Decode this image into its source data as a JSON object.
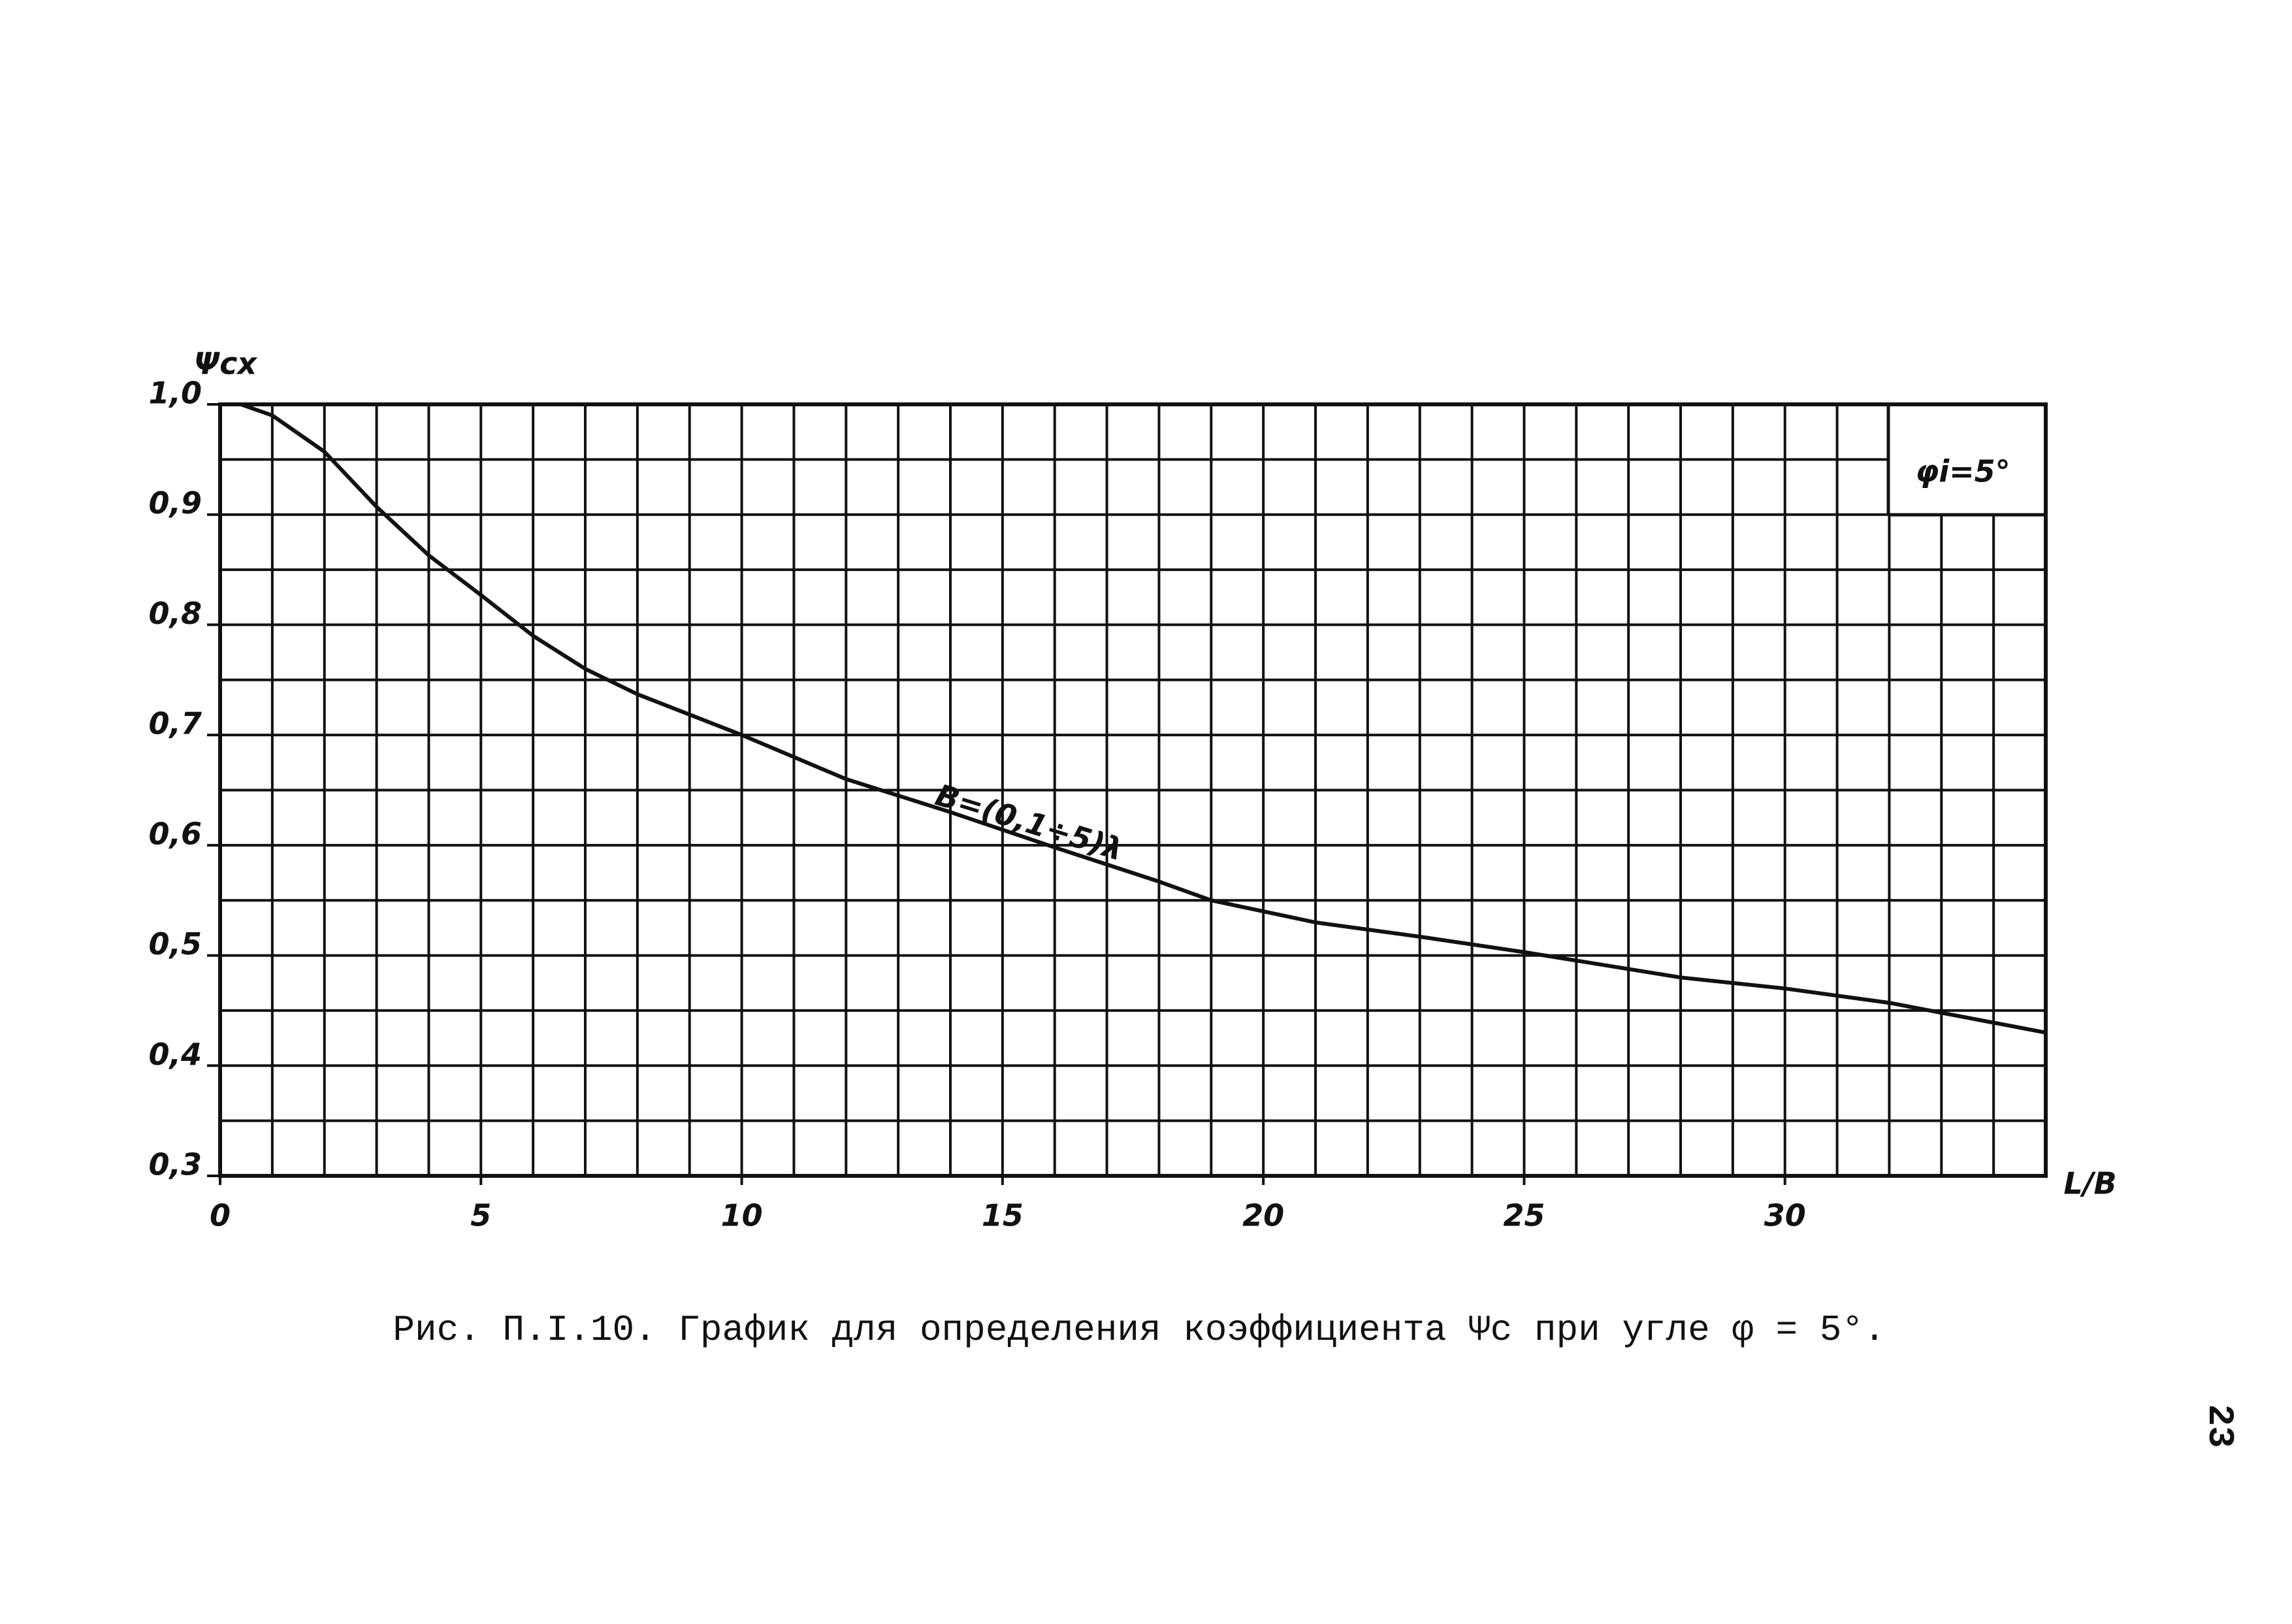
{
  "chart_data": {
    "type": "line",
    "caption": "Рис. П.I.10. График для определения коэффициента Ψc при угле φ = 5°.",
    "page_number": "23",
    "y_label": "Ψcx",
    "x_label": "L/B",
    "annotations": [
      "B=(0,1÷5)λ",
      "φi=5°"
    ],
    "x": [
      0.4,
      1,
      2,
      3,
      4,
      5,
      6,
      7,
      8,
      10,
      12,
      14,
      16,
      18,
      19,
      21,
      23,
      25,
      28,
      30,
      32,
      35
    ],
    "series": [
      {
        "name": "B=(0,1÷5)λ",
        "color": "#111111",
        "values": [
          1.0,
          0.99,
          0.957,
          0.907,
          0.863,
          0.827,
          0.79,
          0.76,
          0.737,
          0.7,
          0.66,
          0.63,
          0.598,
          0.567,
          0.55,
          0.53,
          0.517,
          0.503,
          0.48,
          0.47,
          0.457,
          0.43
        ]
      }
    ],
    "xlim": [
      0,
      35
    ],
    "ylim": [
      0.3,
      1.0
    ],
    "xticks": [
      0,
      5,
      10,
      15,
      20,
      25,
      30
    ],
    "yticks": [
      {
        "value": 0.3,
        "label": "0,3"
      },
      {
        "value": 0.4,
        "label": "0,4"
      },
      {
        "value": 0.5,
        "label": "0,5"
      },
      {
        "value": 0.6,
        "label": "0,6"
      },
      {
        "value": 0.7,
        "label": "0,7"
      },
      {
        "value": 0.8,
        "label": "0,8"
      },
      {
        "value": 0.9,
        "label": "0,9"
      },
      {
        "value": 1.0,
        "label": "1,0"
      }
    ],
    "xgrid": [
      0,
      1,
      2,
      3,
      4,
      5,
      6,
      7,
      8,
      9,
      10,
      11,
      12,
      13,
      14,
      15,
      16,
      17,
      18,
      19,
      20,
      21,
      22,
      23,
      24,
      25,
      26,
      27,
      28,
      29,
      30,
      31,
      32,
      33,
      34,
      35
    ],
    "ygrid": [
      0.3,
      0.35,
      0.4,
      0.45,
      0.5,
      0.55,
      0.6,
      0.65,
      0.7,
      0.75,
      0.8,
      0.85,
      0.9,
      0.95,
      1.0
    ],
    "grid": true
  }
}
